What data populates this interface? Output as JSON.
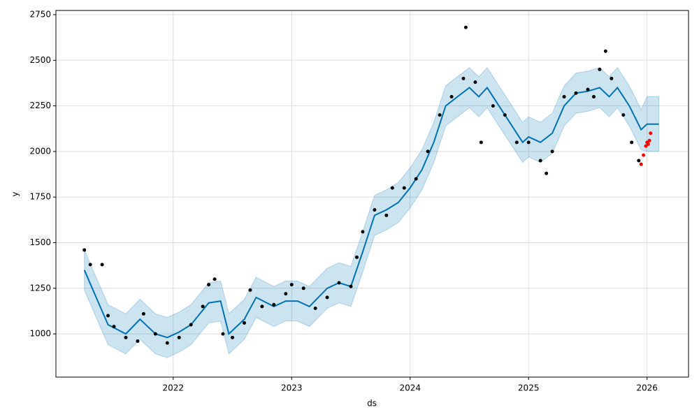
{
  "chart_data": {
    "type": "line",
    "xlabel": "ds",
    "ylabel": "y",
    "xlim": [
      2021.01,
      2026.35
    ],
    "ylim": [
      763,
      2773
    ],
    "xticks": [
      2022,
      2023,
      2024,
      2025,
      2026
    ],
    "yticks": [
      1000,
      1250,
      1500,
      1750,
      2000,
      2250,
      2500,
      2750
    ],
    "grid": true,
    "series": [
      {
        "type": "band",
        "color": "#0072B2",
        "x": [
          2021.25,
          2021.35,
          2021.45,
          2021.6,
          2021.72,
          2021.85,
          2021.95,
          2022.05,
          2022.15,
          2022.3,
          2022.4,
          2022.47,
          2022.6,
          2022.7,
          2022.85,
          2022.95,
          2023.05,
          2023.15,
          2023.3,
          2023.4,
          2023.5,
          2023.6,
          2023.7,
          2023.8,
          2023.9,
          2024.0,
          2024.1,
          2024.2,
          2024.3,
          2024.4,
          2024.5,
          2024.58,
          2024.65,
          2024.75,
          2024.85,
          2024.95,
          2025.0,
          2025.1,
          2025.2,
          2025.3,
          2025.4,
          2025.5,
          2025.6,
          2025.68,
          2025.75,
          2025.85,
          2025.95,
          2026.0,
          2026.1
        ],
        "lower": [
          1240,
          1090,
          940,
          890,
          970,
          890,
          870,
          900,
          940,
          1060,
          1070,
          890,
          970,
          1090,
          1040,
          1070,
          1070,
          1040,
          1140,
          1170,
          1150,
          1340,
          1540,
          1570,
          1610,
          1690,
          1790,
          1940,
          2140,
          2190,
          2240,
          2190,
          2240,
          2140,
          2040,
          1940,
          1970,
          1940,
          1990,
          2140,
          2210,
          2220,
          2240,
          2190,
          2240,
          2140,
          2010,
          2000,
          2000
        ],
        "upper": [
          1460,
          1310,
          1160,
          1110,
          1190,
          1110,
          1090,
          1120,
          1160,
          1280,
          1290,
          1110,
          1190,
          1310,
          1260,
          1290,
          1290,
          1260,
          1360,
          1390,
          1370,
          1560,
          1760,
          1790,
          1830,
          1910,
          2010,
          2160,
          2360,
          2410,
          2460,
          2410,
          2460,
          2360,
          2260,
          2160,
          2190,
          2160,
          2210,
          2360,
          2430,
          2440,
          2460,
          2410,
          2460,
          2360,
          2230,
          2300,
          2300
        ]
      },
      {
        "type": "line",
        "color": "#0072B2",
        "x": [
          2021.25,
          2021.35,
          2021.45,
          2021.6,
          2021.72,
          2021.85,
          2021.95,
          2022.05,
          2022.15,
          2022.3,
          2022.4,
          2022.47,
          2022.6,
          2022.7,
          2022.85,
          2022.95,
          2023.05,
          2023.15,
          2023.3,
          2023.4,
          2023.5,
          2023.6,
          2023.7,
          2023.8,
          2023.9,
          2024.0,
          2024.1,
          2024.2,
          2024.3,
          2024.4,
          2024.5,
          2024.58,
          2024.65,
          2024.75,
          2024.85,
          2024.95,
          2025.0,
          2025.1,
          2025.2,
          2025.3,
          2025.4,
          2025.5,
          2025.6,
          2025.68,
          2025.75,
          2025.85,
          2025.95,
          2026.0,
          2026.1
        ],
        "values": [
          1350,
          1200,
          1050,
          1000,
          1080,
          1000,
          980,
          1010,
          1050,
          1170,
          1180,
          1000,
          1080,
          1200,
          1150,
          1180,
          1180,
          1150,
          1250,
          1280,
          1260,
          1450,
          1650,
          1680,
          1720,
          1800,
          1900,
          2050,
          2250,
          2300,
          2350,
          2300,
          2350,
          2250,
          2150,
          2050,
          2080,
          2050,
          2100,
          2250,
          2320,
          2330,
          2350,
          2300,
          2350,
          2250,
          2120,
          2150,
          2150
        ]
      },
      {
        "type": "scatter",
        "color": "#000000",
        "x": [
          2021.25,
          2021.3,
          2021.4,
          2021.45,
          2021.5,
          2021.6,
          2021.7,
          2021.75,
          2021.85,
          2021.95,
          2022.05,
          2022.15,
          2022.25,
          2022.3,
          2022.35,
          2022.42,
          2022.5,
          2022.6,
          2022.65,
          2022.75,
          2022.85,
          2022.95,
          2023.0,
          2023.1,
          2023.2,
          2023.3,
          2023.4,
          2023.5,
          2023.55,
          2023.6,
          2023.7,
          2023.8,
          2023.85,
          2023.95,
          2024.05,
          2024.15,
          2024.25,
          2024.35,
          2024.45,
          2024.47,
          2024.55,
          2024.6,
          2024.7,
          2024.8,
          2024.9,
          2025.0,
          2025.1,
          2025.15,
          2025.2,
          2025.3,
          2025.4,
          2025.5,
          2025.55,
          2025.6,
          2025.65,
          2025.7,
          2025.8,
          2025.87,
          2025.93
        ],
        "values": [
          1460,
          1380,
          1380,
          1100,
          1040,
          980,
          960,
          1110,
          1000,
          950,
          980,
          1050,
          1150,
          1270,
          1300,
          1000,
          980,
          1060,
          1240,
          1150,
          1160,
          1220,
          1270,
          1250,
          1140,
          1200,
          1280,
          1260,
          1420,
          1560,
          1680,
          1650,
          1800,
          1800,
          1850,
          2000,
          2200,
          2300,
          2400,
          2680,
          2380,
          2050,
          2250,
          2200,
          2050,
          2050,
          1950,
          1880,
          2000,
          2300,
          2320,
          2340,
          2300,
          2450,
          2550,
          2400,
          2200,
          2050,
          1950
        ]
      },
      {
        "type": "scatter",
        "color": "#ff0000",
        "x": [
          2025.95,
          2025.97,
          2025.99,
          2026.0,
          2026.01,
          2026.02,
          2026.03
        ],
        "values": [
          1930,
          1980,
          2030,
          2050,
          2040,
          2060,
          2100
        ]
      }
    ]
  }
}
